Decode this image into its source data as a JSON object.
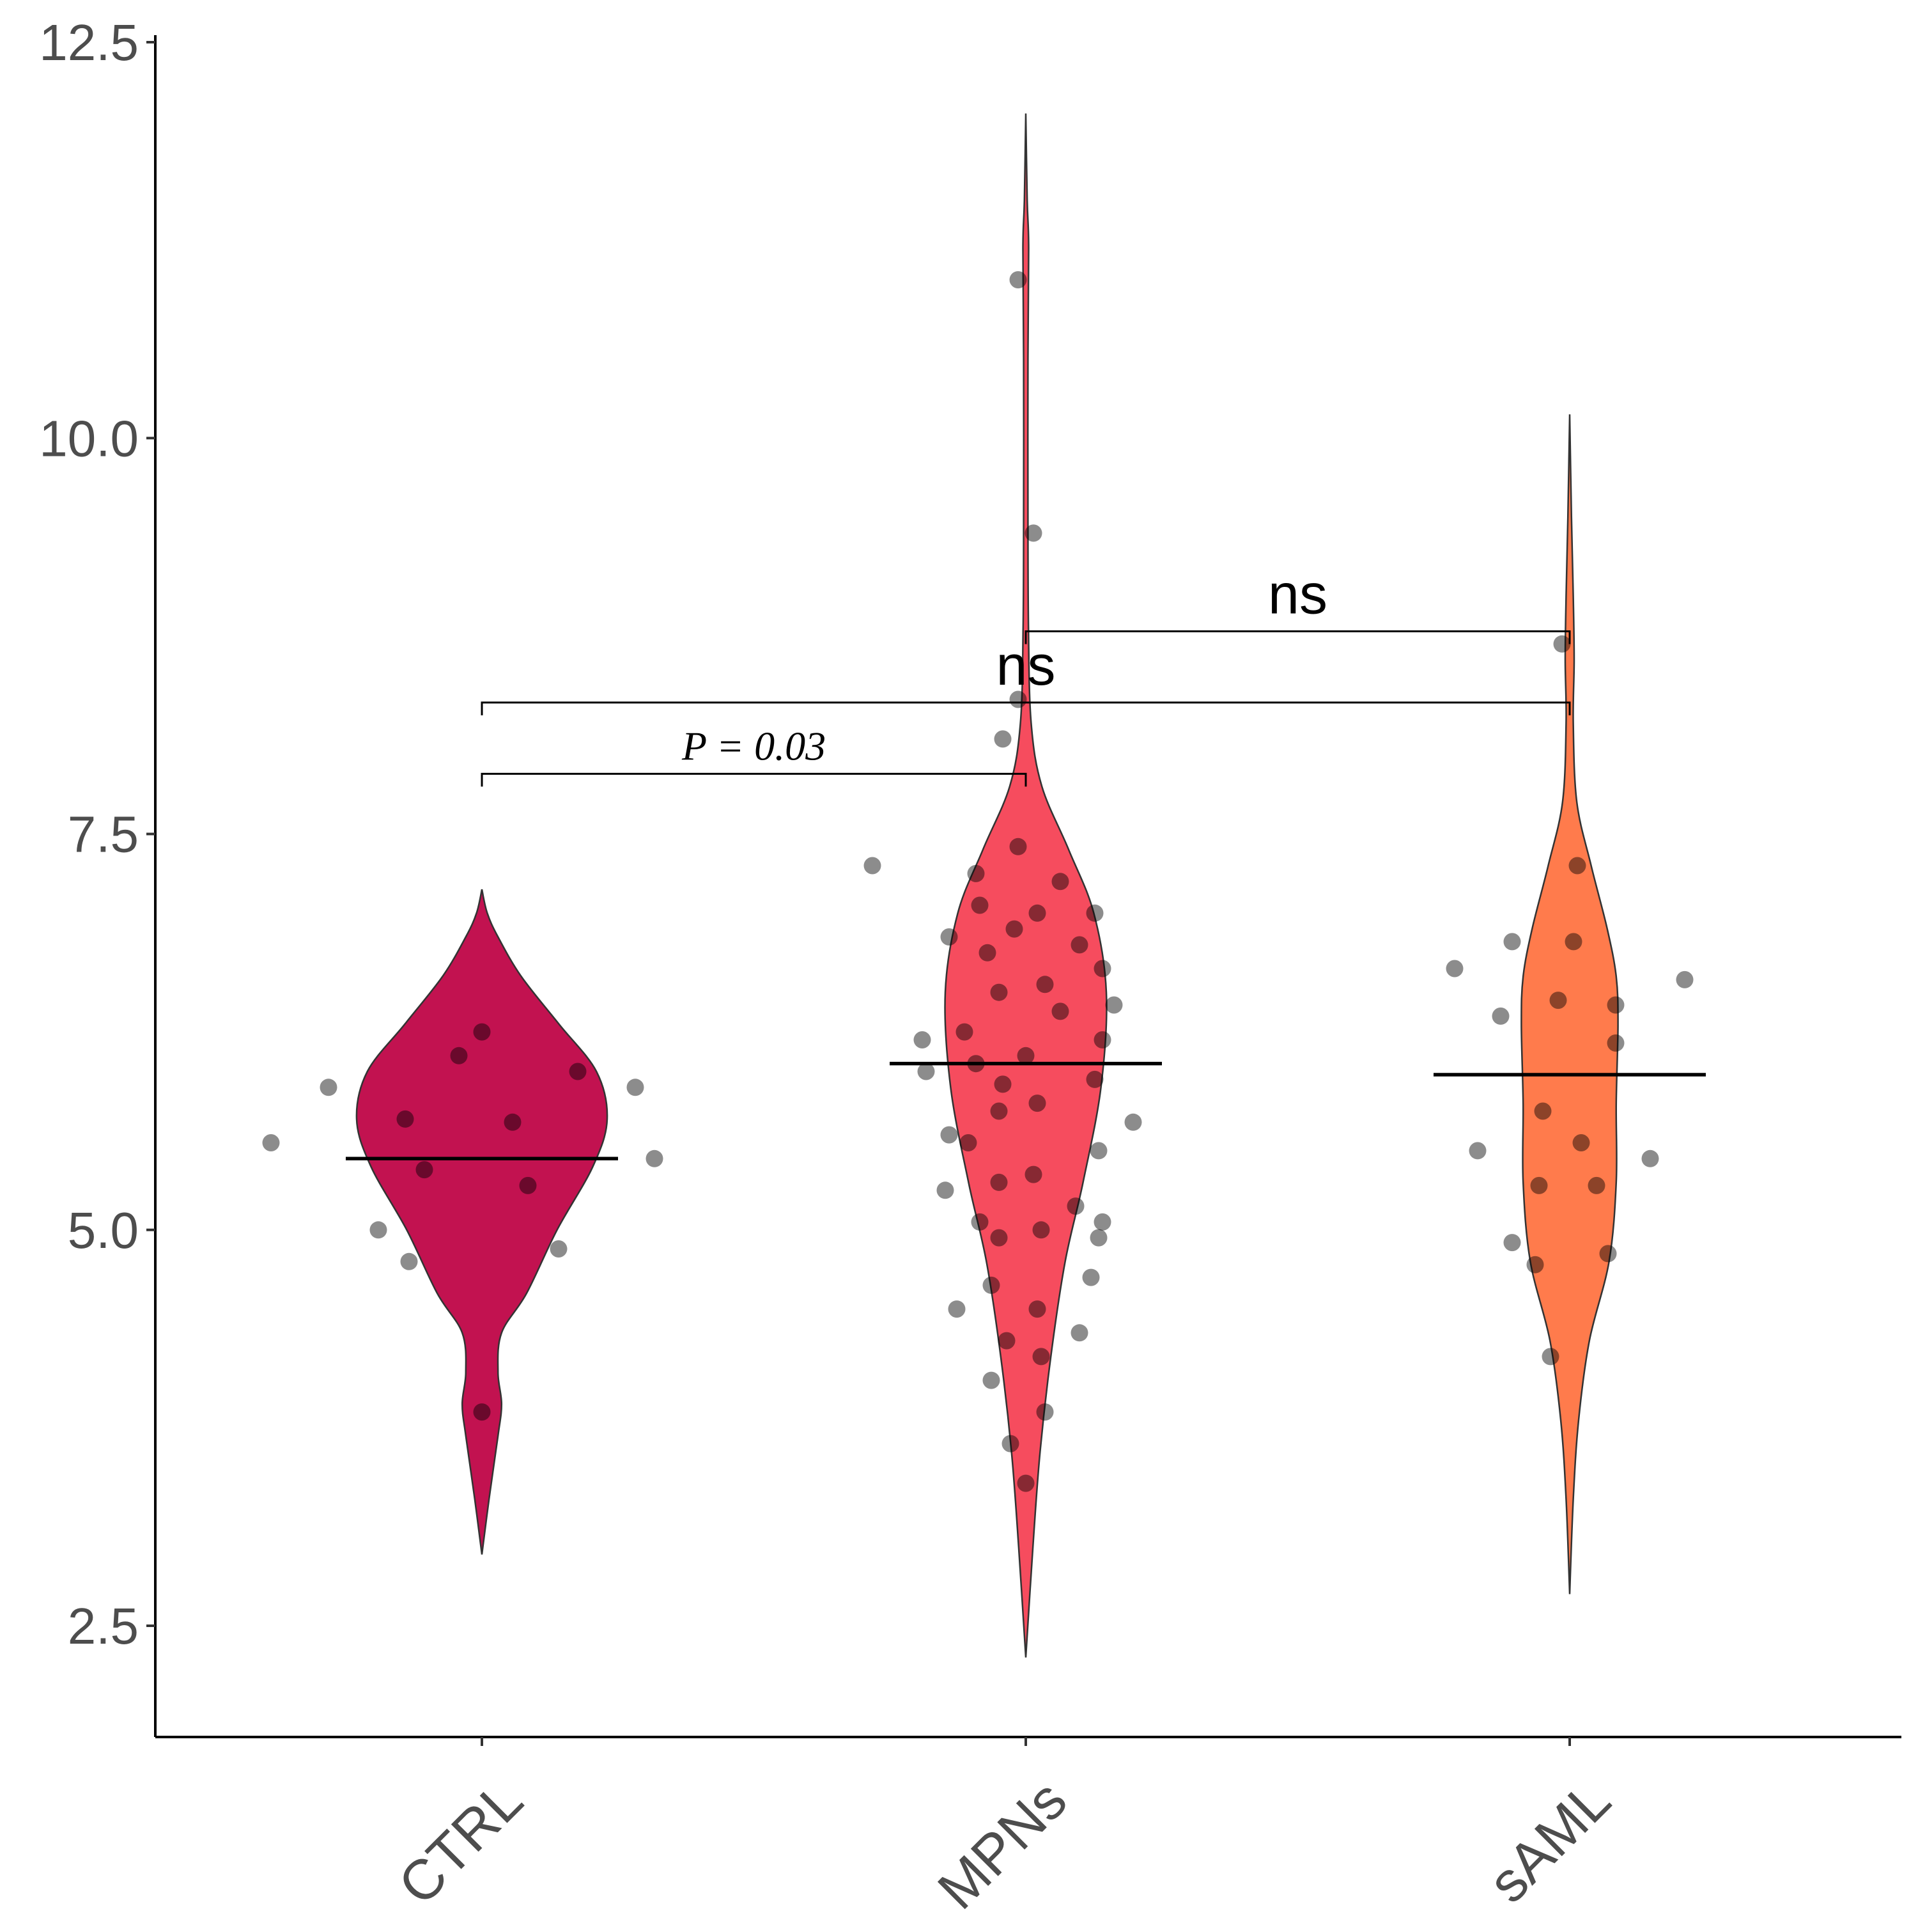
{
  "chart_data": {
    "type": "violin",
    "title": "",
    "xlabel": "",
    "ylabel": "",
    "ylim": [
      1.7,
      12.75
    ],
    "yticks": [
      2.5,
      5.0,
      7.5,
      10.0,
      12.5
    ],
    "ytick_labels": [
      "2.5",
      "5.0",
      "7.5",
      "10.0",
      "12.5"
    ],
    "grid": false,
    "legend": "none",
    "categories": [
      "CTRL",
      "MPNs",
      "sAML"
    ],
    "groups": [
      {
        "name": "CTRL",
        "color": "#c21250",
        "ymin": 2.95,
        "ymax": 7.15,
        "median": 5.45,
        "density": [
          [
            2.95,
            0.0
          ],
          [
            3.3,
            0.04
          ],
          [
            3.7,
            0.09
          ],
          [
            3.9,
            0.11
          ],
          [
            4.1,
            0.09
          ],
          [
            4.35,
            0.11
          ],
          [
            4.6,
            0.25
          ],
          [
            5.0,
            0.42
          ],
          [
            5.4,
            0.62
          ],
          [
            5.7,
            0.7
          ],
          [
            6.0,
            0.64
          ],
          [
            6.3,
            0.43
          ],
          [
            6.6,
            0.22
          ],
          [
            6.85,
            0.09
          ],
          [
            7.0,
            0.03
          ],
          [
            7.15,
            0.0
          ]
        ],
        "points": [
          [
            6.25,
            0.0
          ],
          [
            6.1,
            -0.06
          ],
          [
            6.0,
            0.25
          ],
          [
            5.9,
            -0.4
          ],
          [
            5.9,
            0.4
          ],
          [
            5.7,
            -0.2
          ],
          [
            5.68,
            0.08
          ],
          [
            5.55,
            -0.55
          ],
          [
            5.45,
            0.45
          ],
          [
            5.38,
            -0.15
          ],
          [
            5.28,
            0.12
          ],
          [
            5.0,
            -0.27
          ],
          [
            4.88,
            0.2
          ],
          [
            4.8,
            -0.19
          ],
          [
            3.85,
            0.0
          ]
        ]
      },
      {
        "name": "MPNs",
        "color": "#f64c5e",
        "ymin": 2.3,
        "ymax": 12.05,
        "median": 6.05,
        "density": [
          [
            2.3,
            0.0
          ],
          [
            3.0,
            0.04
          ],
          [
            3.6,
            0.08
          ],
          [
            4.2,
            0.14
          ],
          [
            4.8,
            0.22
          ],
          [
            5.3,
            0.32
          ],
          [
            5.9,
            0.42
          ],
          [
            6.5,
            0.45
          ],
          [
            7.0,
            0.38
          ],
          [
            7.4,
            0.24
          ],
          [
            7.8,
            0.09
          ],
          [
            8.2,
            0.03
          ],
          [
            8.8,
            0.015
          ],
          [
            9.5,
            0.012
          ],
          [
            10.5,
            0.012
          ],
          [
            11.2,
            0.016
          ],
          [
            11.5,
            0.008
          ],
          [
            12.05,
            0.0
          ]
        ],
        "points": [
          [
            11.0,
            -0.02
          ],
          [
            9.4,
            0.02
          ],
          [
            8.35,
            -0.02
          ],
          [
            8.1,
            -0.06
          ],
          [
            7.42,
            -0.02
          ],
          [
            7.3,
            -0.4
          ],
          [
            7.25,
            -0.13
          ],
          [
            7.2,
            0.09
          ],
          [
            7.05,
            -0.12
          ],
          [
            7.0,
            0.03
          ],
          [
            7.0,
            0.18
          ],
          [
            6.9,
            -0.03
          ],
          [
            6.85,
            -0.2
          ],
          [
            6.8,
            0.14
          ],
          [
            6.75,
            -0.1
          ],
          [
            6.65,
            0.2
          ],
          [
            6.55,
            0.05
          ],
          [
            6.5,
            -0.07
          ],
          [
            6.42,
            0.23
          ],
          [
            6.38,
            0.09
          ],
          [
            6.25,
            -0.16
          ],
          [
            6.2,
            -0.27
          ],
          [
            6.2,
            0.2
          ],
          [
            6.1,
            0.0
          ],
          [
            6.05,
            -0.13
          ],
          [
            6.0,
            -0.26
          ],
          [
            5.95,
            0.18
          ],
          [
            5.92,
            -0.06
          ],
          [
            5.8,
            0.03
          ],
          [
            5.75,
            -0.07
          ],
          [
            5.68,
            0.28
          ],
          [
            5.6,
            -0.2
          ],
          [
            5.55,
            -0.15
          ],
          [
            5.5,
            0.19
          ],
          [
            5.35,
            0.02
          ],
          [
            5.3,
            -0.07
          ],
          [
            5.25,
            -0.21
          ],
          [
            5.15,
            0.13
          ],
          [
            5.05,
            -0.12
          ],
          [
            5.05,
            0.2
          ],
          [
            5.0,
            0.04
          ],
          [
            4.95,
            -0.07
          ],
          [
            4.95,
            0.19
          ],
          [
            4.7,
            0.17
          ],
          [
            4.65,
            -0.09
          ],
          [
            4.5,
            -0.18
          ],
          [
            4.5,
            0.03
          ],
          [
            4.35,
            0.14
          ],
          [
            4.3,
            -0.05
          ],
          [
            4.2,
            0.04
          ],
          [
            4.05,
            -0.09
          ],
          [
            3.85,
            0.05
          ],
          [
            3.65,
            -0.04
          ],
          [
            3.4,
            0.0
          ]
        ]
      },
      {
        "name": "sAML",
        "color": "#ff7b4c",
        "ymin": 2.7,
        "ymax": 10.15,
        "median": 5.98,
        "density": [
          [
            2.7,
            0.0
          ],
          [
            3.3,
            0.02
          ],
          [
            3.8,
            0.05
          ],
          [
            4.3,
            0.11
          ],
          [
            4.8,
            0.22
          ],
          [
            5.3,
            0.26
          ],
          [
            5.8,
            0.26
          ],
          [
            6.3,
            0.27
          ],
          [
            6.6,
            0.26
          ],
          [
            6.9,
            0.21
          ],
          [
            7.3,
            0.12
          ],
          [
            7.7,
            0.04
          ],
          [
            8.2,
            0.02
          ],
          [
            8.6,
            0.025
          ],
          [
            9.0,
            0.02
          ],
          [
            9.5,
            0.01
          ],
          [
            10.15,
            0.0
          ]
        ],
        "points": [
          [
            8.7,
            -0.02
          ],
          [
            7.3,
            0.02
          ],
          [
            6.82,
            -0.15
          ],
          [
            6.82,
            0.01
          ],
          [
            6.65,
            -0.3
          ],
          [
            6.58,
            0.3
          ],
          [
            6.45,
            -0.03
          ],
          [
            6.42,
            0.12
          ],
          [
            6.35,
            -0.18
          ],
          [
            6.18,
            0.12
          ],
          [
            5.75,
            -0.07
          ],
          [
            5.55,
            0.03
          ],
          [
            5.5,
            -0.24
          ],
          [
            5.45,
            0.21
          ],
          [
            5.28,
            -0.08
          ],
          [
            5.28,
            0.07
          ],
          [
            4.92,
            -0.15
          ],
          [
            4.85,
            0.1
          ],
          [
            4.78,
            -0.09
          ],
          [
            4.2,
            -0.05
          ]
        ]
      }
    ],
    "comparisons": [
      {
        "group1": "CTRL",
        "group2": "MPNs",
        "y": 7.88,
        "label": "P = 0.03"
      },
      {
        "group1": "CTRL",
        "group2": "sAML",
        "y": 8.33,
        "label": "ns"
      },
      {
        "group1": "MPNs",
        "group2": "sAML",
        "y": 8.78,
        "label": "ns"
      }
    ]
  }
}
